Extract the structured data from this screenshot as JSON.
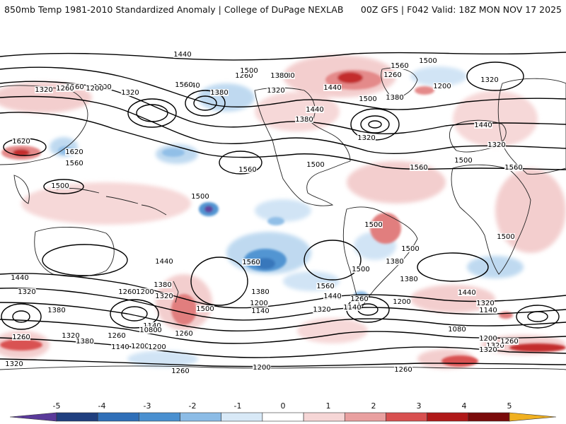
{
  "header": {
    "left_title": "850mb Temp 1981-2010 Standardized Anomaly | College of DuPage NEXLAB",
    "right_title": "00Z GFS | F042 Valid: 18Z MON NOV 17 2025"
  },
  "colorbar": {
    "labels": [
      "-5",
      "-4",
      "-3",
      "-2",
      "-1",
      "0",
      "1",
      "2",
      "3",
      "4",
      "5"
    ],
    "colors": [
      "#5a3a9a",
      "#1f3f7f",
      "#2f6fb8",
      "#4a90d0",
      "#8cbce6",
      "#d8e9f7",
      "#ffffff",
      "#f6d6d6",
      "#e9a0a0",
      "#d85050",
      "#b01818",
      "#7a0a0a",
      "#f0b020"
    ]
  },
  "map": {
    "contour_labels": [
      "1440",
      "1380",
      "1320",
      "1260",
      "1200",
      "1320",
      "1260",
      "1200",
      "1440",
      "1380",
      "1500",
      "1320",
      "1260",
      "1200",
      "1380",
      "1440",
      "1500",
      "1560",
      "1380",
      "1320",
      "1260",
      "1560",
      "1500",
      "1440",
      "1380",
      "1320",
      "1560",
      "1440",
      "1320",
      "1500",
      "1560",
      "1620",
      "1620",
      "1560",
      "1500",
      "1500",
      "1500",
      "1560",
      "1500",
      "1500",
      "1500",
      "1560",
      "1500",
      "1440",
      "1380",
      "1320",
      "1260",
      "1200",
      "1140",
      "1080",
      "1440",
      "1320",
      "1380",
      "1260",
      "1320",
      "1380",
      "1260",
      "1140",
      "1200",
      "1080",
      "1200",
      "1500",
      "1260",
      "1380",
      "1200",
      "1140",
      "1560",
      "1440",
      "1320",
      "1500",
      "1260",
      "1200",
      "1140",
      "1440",
      "1380",
      "1320",
      "1140",
      "1080",
      "1200",
      "1320",
      "1260",
      "1380",
      "1440",
      "1320",
      "1260",
      "1200",
      "1260",
      "1320"
    ]
  }
}
